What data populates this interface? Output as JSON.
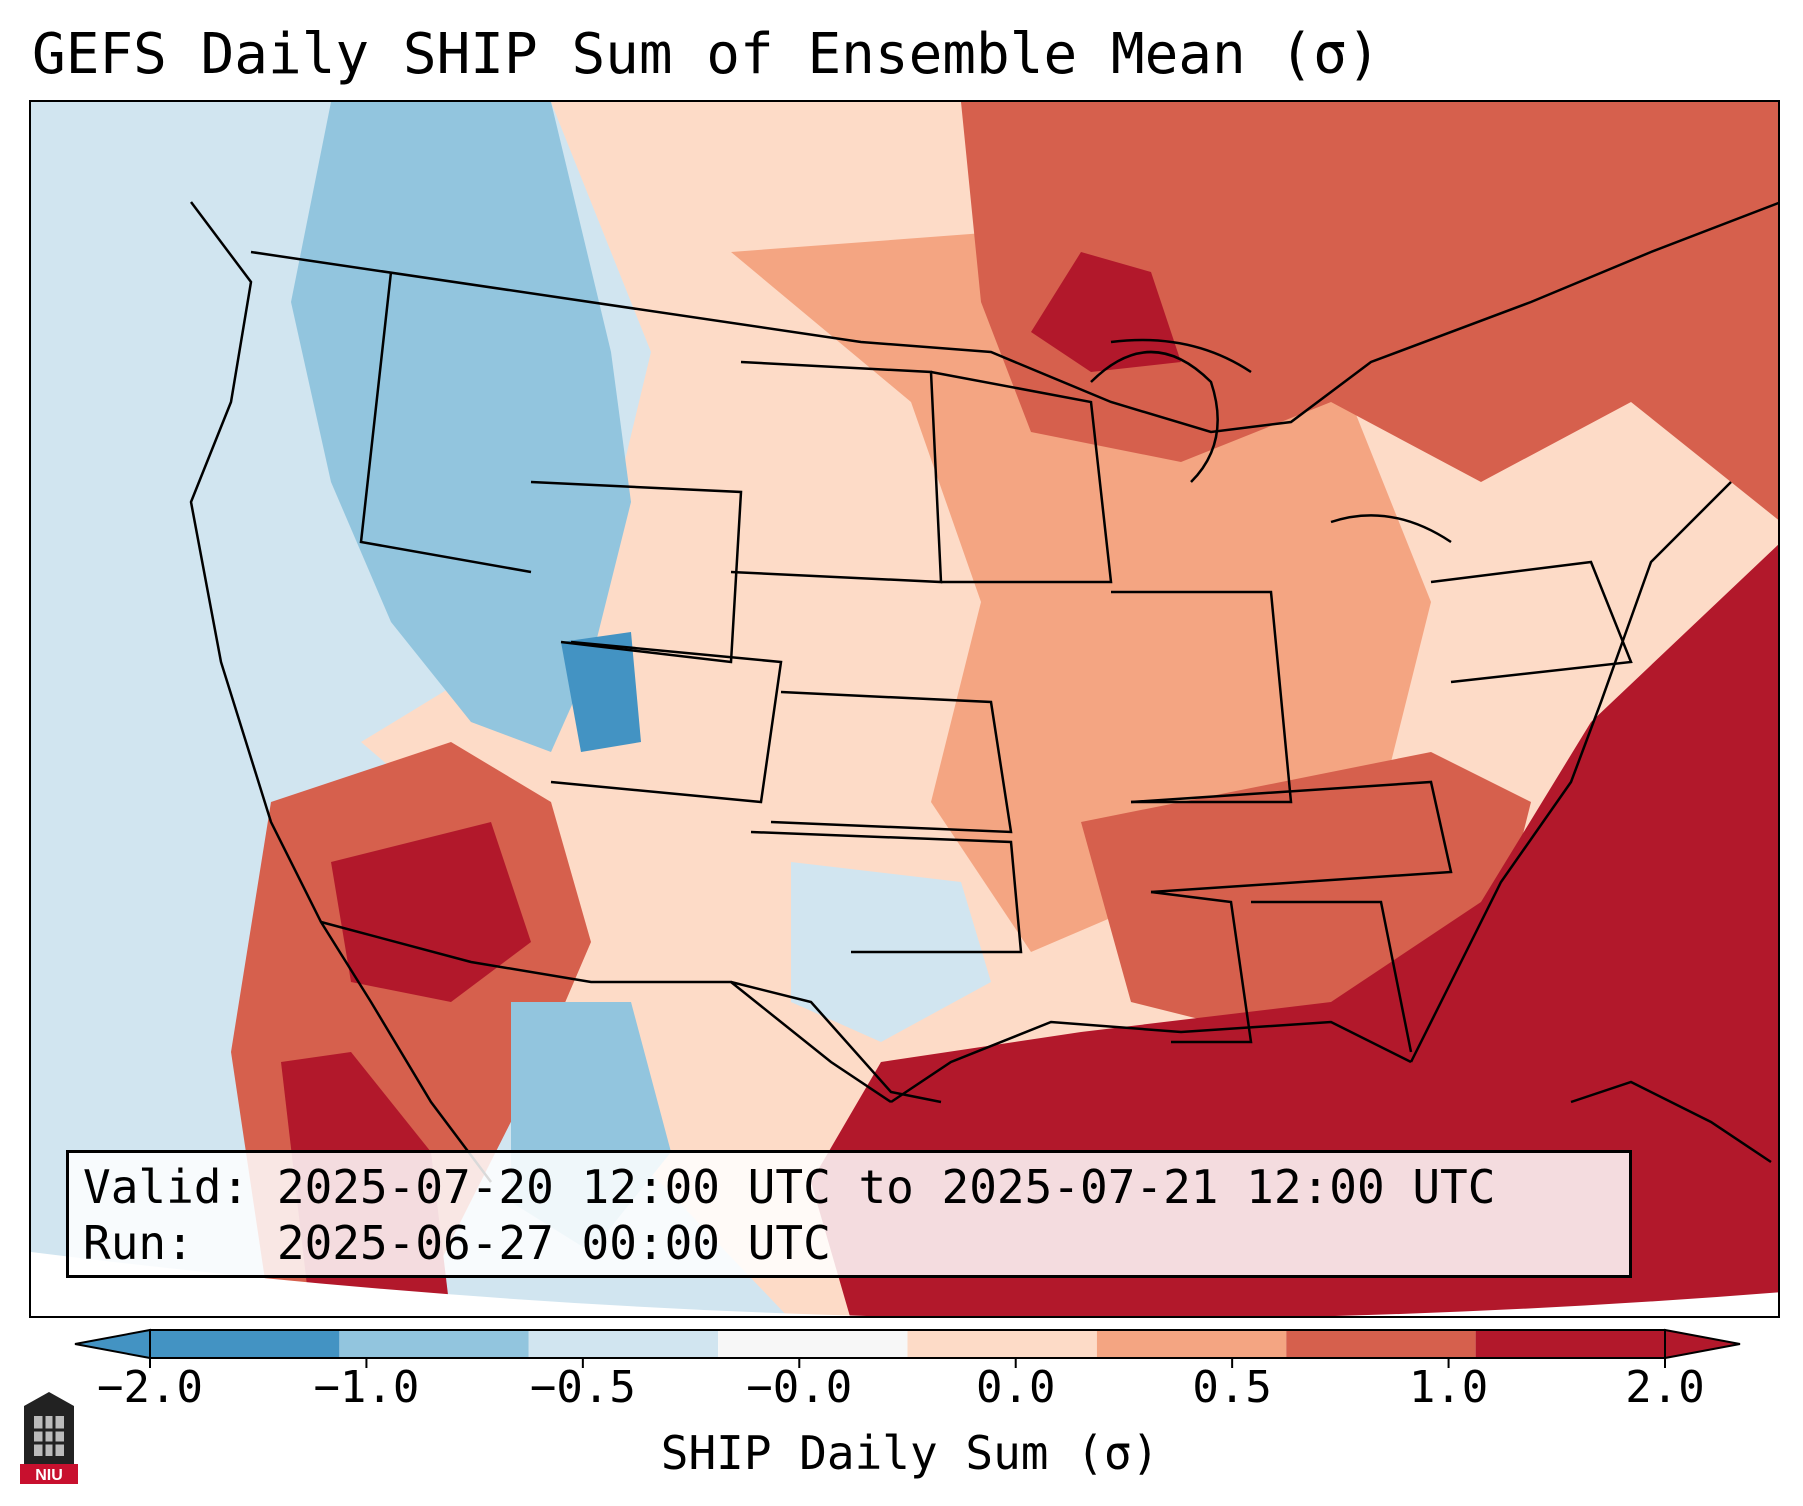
{
  "title": "GEFS Daily SHIP Sum of Ensemble Mean (σ)",
  "info": {
    "valid_label": "Valid:",
    "valid_value": "2025-07-20 12:00 UTC to 2025-07-21 12:00 UTC",
    "run_label": "Run:",
    "run_value": "2025-06-27 00:00 UTC"
  },
  "colorbar": {
    "label": "SHIP Daily Sum (σ)",
    "tick_labels": [
      "−2.0",
      "−1.0",
      "−0.5",
      "−0.0",
      "0.0",
      "0.5",
      "1.0",
      "2.0"
    ],
    "colors": [
      "#4393c3",
      "#92c5de",
      "#d1e5f0",
      "#f7f7f7",
      "#fddbc7",
      "#f4a582",
      "#d6604d",
      "#b2182b"
    ]
  },
  "logo": {
    "text": "NIU",
    "icon": "university-tower-icon"
  },
  "map": {
    "ocean_colors": {
      "pacific": "#d1e5f0",
      "atlantic_gulf": "#b2182b",
      "canada_east": "#d6604d"
    }
  }
}
